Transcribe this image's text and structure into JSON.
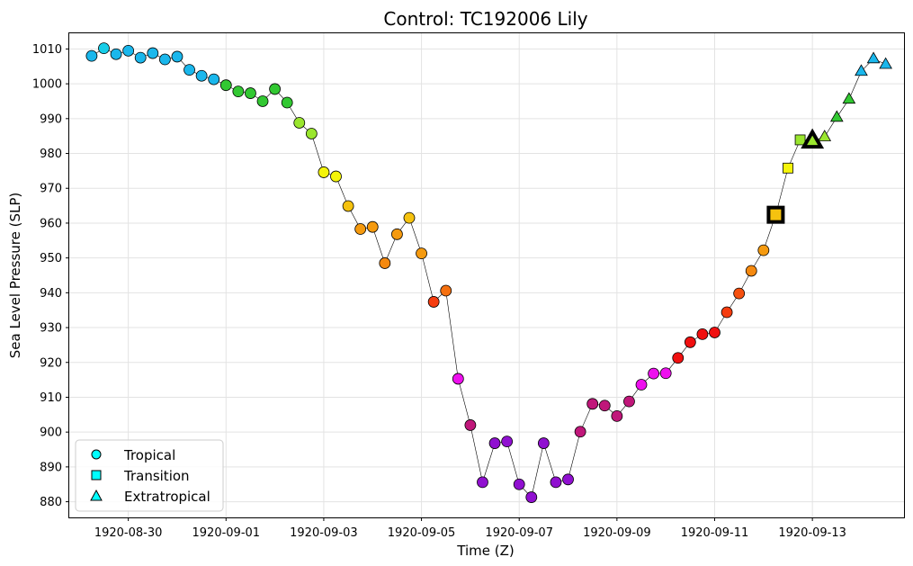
{
  "chart_data": {
    "type": "scatter",
    "title": "Control: TC192006 Lily",
    "xlabel": "Time (Z)",
    "ylabel": "Sea Level Pressure (SLP)",
    "grid": true,
    "legend_placement": "bottom-left",
    "x_axis": {
      "type": "date",
      "range": [
        "1920-08-28T19:00",
        "1920-09-14T21:00"
      ],
      "ticks": [
        "1920-08-30",
        "1920-09-01",
        "1920-09-03",
        "1920-09-05",
        "1920-09-07",
        "1920-09-09",
        "1920-09-11",
        "1920-09-13"
      ]
    },
    "y_axis": {
      "range": [
        875.5,
        1014.5
      ],
      "ticks": [
        880,
        890,
        900,
        910,
        920,
        930,
        940,
        950,
        960,
        970,
        980,
        990,
        1000,
        1010
      ]
    },
    "legend": [
      {
        "label": "Tropical",
        "marker": "circle"
      },
      {
        "label": "Transition",
        "marker": "square"
      },
      {
        "label": "Extratropical",
        "marker": "triangle"
      }
    ],
    "points": [
      {
        "t": "1920-08-29T06:00",
        "slp": 1008.0,
        "phase": "tropical",
        "color": "#1ab7ec"
      },
      {
        "t": "1920-08-29T12:00",
        "slp": 1010.2,
        "phase": "tropical",
        "color": "#17cde8"
      },
      {
        "t": "1920-08-29T18:00",
        "slp": 1008.5,
        "phase": "tropical",
        "color": "#1ab7ec"
      },
      {
        "t": "1920-08-30T00:00",
        "slp": 1009.5,
        "phase": "tropical",
        "color": "#1ab7ec"
      },
      {
        "t": "1920-08-30T06:00",
        "slp": 1007.5,
        "phase": "tropical",
        "color": "#1ab7ec"
      },
      {
        "t": "1920-08-30T12:00",
        "slp": 1008.8,
        "phase": "tropical",
        "color": "#1ab7ec"
      },
      {
        "t": "1920-08-30T18:00",
        "slp": 1007.0,
        "phase": "tropical",
        "color": "#1ab7ec"
      },
      {
        "t": "1920-08-31T00:00",
        "slp": 1007.8,
        "phase": "tropical",
        "color": "#1ab7ec"
      },
      {
        "t": "1920-08-31T06:00",
        "slp": 1004.0,
        "phase": "tropical",
        "color": "#1ab7ec"
      },
      {
        "t": "1920-08-31T12:00",
        "slp": 1002.3,
        "phase": "tropical",
        "color": "#1ab7ec"
      },
      {
        "t": "1920-08-31T18:00",
        "slp": 1001.3,
        "phase": "tropical",
        "color": "#1ab7ec"
      },
      {
        "t": "1920-09-01T00:00",
        "slp": 999.6,
        "phase": "tropical",
        "color": "#32c832"
      },
      {
        "t": "1920-09-01T06:00",
        "slp": 997.8,
        "phase": "tropical",
        "color": "#32c832"
      },
      {
        "t": "1920-09-01T12:00",
        "slp": 997.3,
        "phase": "tropical",
        "color": "#32c832"
      },
      {
        "t": "1920-09-01T18:00",
        "slp": 995.0,
        "phase": "tropical",
        "color": "#32c832"
      },
      {
        "t": "1920-09-02T00:00",
        "slp": 998.5,
        "phase": "tropical",
        "color": "#32c832"
      },
      {
        "t": "1920-09-02T06:00",
        "slp": 994.6,
        "phase": "tropical",
        "color": "#32c832"
      },
      {
        "t": "1920-09-02T12:00",
        "slp": 988.8,
        "phase": "tropical",
        "color": "#9ae62e"
      },
      {
        "t": "1920-09-02T18:00",
        "slp": 985.7,
        "phase": "tropical",
        "color": "#9ae62e"
      },
      {
        "t": "1920-09-03T00:00",
        "slp": 974.6,
        "phase": "tropical",
        "color": "#f5f50a"
      },
      {
        "t": "1920-09-03T06:00",
        "slp": 973.4,
        "phase": "tropical",
        "color": "#f5f50a"
      },
      {
        "t": "1920-09-03T12:00",
        "slp": 964.9,
        "phase": "tropical",
        "color": "#f5c20f"
      },
      {
        "t": "1920-09-03T18:00",
        "slp": 958.3,
        "phase": "tropical",
        "color": "#f59a0f"
      },
      {
        "t": "1920-09-04T00:00",
        "slp": 958.9,
        "phase": "tropical",
        "color": "#f59a0f"
      },
      {
        "t": "1920-09-04T06:00",
        "slp": 948.5,
        "phase": "tropical",
        "color": "#f5890f"
      },
      {
        "t": "1920-09-04T12:00",
        "slp": 956.8,
        "phase": "tropical",
        "color": "#f59a0f"
      },
      {
        "t": "1920-09-04T18:00",
        "slp": 961.5,
        "phase": "tropical",
        "color": "#f5c20f"
      },
      {
        "t": "1920-09-05T00:00",
        "slp": 951.3,
        "phase": "tropical",
        "color": "#f59a0f"
      },
      {
        "t": "1920-09-05T06:00",
        "slp": 937.4,
        "phase": "tropical",
        "color": "#f53c0f"
      },
      {
        "t": "1920-09-05T12:00",
        "slp": 940.6,
        "phase": "tropical",
        "color": "#f5700f"
      },
      {
        "t": "1920-09-05T18:00",
        "slp": 915.3,
        "phase": "tropical",
        "color": "#ee10ee"
      },
      {
        "t": "1920-09-06T00:00",
        "slp": 902.0,
        "phase": "tropical",
        "color": "#c0177a"
      },
      {
        "t": "1920-09-06T06:00",
        "slp": 885.6,
        "phase": "tropical",
        "color": "#9010d0"
      },
      {
        "t": "1920-09-06T12:00",
        "slp": 896.8,
        "phase": "tropical",
        "color": "#9010d0"
      },
      {
        "t": "1920-09-06T18:00",
        "slp": 897.3,
        "phase": "tropical",
        "color": "#9010d0"
      },
      {
        "t": "1920-09-07T00:00",
        "slp": 885.0,
        "phase": "tropical",
        "color": "#9010d0"
      },
      {
        "t": "1920-09-07T06:00",
        "slp": 881.3,
        "phase": "tropical",
        "color": "#9010d0"
      },
      {
        "t": "1920-09-07T12:00",
        "slp": 896.8,
        "phase": "tropical",
        "color": "#9010d0"
      },
      {
        "t": "1920-09-07T18:00",
        "slp": 885.6,
        "phase": "tropical",
        "color": "#9010d0"
      },
      {
        "t": "1920-09-08T00:00",
        "slp": 886.4,
        "phase": "tropical",
        "color": "#9010d0"
      },
      {
        "t": "1920-09-08T06:00",
        "slp": 900.1,
        "phase": "tropical",
        "color": "#c0177a"
      },
      {
        "t": "1920-09-08T12:00",
        "slp": 908.1,
        "phase": "tropical",
        "color": "#c0177a"
      },
      {
        "t": "1920-09-08T18:00",
        "slp": 907.6,
        "phase": "tropical",
        "color": "#c0177a"
      },
      {
        "t": "1920-09-09T00:00",
        "slp": 904.6,
        "phase": "tropical",
        "color": "#c0177a"
      },
      {
        "t": "1920-09-09T06:00",
        "slp": 908.8,
        "phase": "tropical",
        "color": "#c0177a"
      },
      {
        "t": "1920-09-09T12:00",
        "slp": 913.6,
        "phase": "tropical",
        "color": "#ee10ee"
      },
      {
        "t": "1920-09-09T18:00",
        "slp": 916.8,
        "phase": "tropical",
        "color": "#ee10ee"
      },
      {
        "t": "1920-09-10T00:00",
        "slp": 916.9,
        "phase": "tropical",
        "color": "#ee10ee"
      },
      {
        "t": "1920-09-10T06:00",
        "slp": 921.3,
        "phase": "tropical",
        "color": "#f01010"
      },
      {
        "t": "1920-09-10T12:00",
        "slp": 925.8,
        "phase": "tropical",
        "color": "#f01010"
      },
      {
        "t": "1920-09-10T18:00",
        "slp": 928.1,
        "phase": "tropical",
        "color": "#f01010"
      },
      {
        "t": "1920-09-11T00:00",
        "slp": 928.6,
        "phase": "tropical",
        "color": "#f01010"
      },
      {
        "t": "1920-09-11T06:00",
        "slp": 934.4,
        "phase": "tropical",
        "color": "#f53c0f"
      },
      {
        "t": "1920-09-11T12:00",
        "slp": 939.8,
        "phase": "tropical",
        "color": "#f5500f"
      },
      {
        "t": "1920-09-11T18:00",
        "slp": 946.3,
        "phase": "tropical",
        "color": "#f5890f"
      },
      {
        "t": "1920-09-12T00:00",
        "slp": 952.2,
        "phase": "tropical",
        "color": "#f59a0f"
      },
      {
        "t": "1920-09-12T06:00",
        "slp": 962.4,
        "phase": "transition",
        "color": "#f5c20f",
        "highlight": true
      },
      {
        "t": "1920-09-12T12:00",
        "slp": 975.8,
        "phase": "transition",
        "color": "#f5f50a"
      },
      {
        "t": "1920-09-12T18:00",
        "slp": 983.9,
        "phase": "transition",
        "color": "#9ae62e"
      },
      {
        "t": "1920-09-13T00:00",
        "slp": 983.6,
        "phase": "extratropical",
        "color": "#9ae62e",
        "highlight": true
      },
      {
        "t": "1920-09-13T06:00",
        "slp": 984.8,
        "phase": "extratropical",
        "color": "#9ae62e"
      },
      {
        "t": "1920-09-13T12:00",
        "slp": 990.4,
        "phase": "extratropical",
        "color": "#32c832"
      },
      {
        "t": "1920-09-13T18:00",
        "slp": 995.6,
        "phase": "extratropical",
        "color": "#32c832"
      },
      {
        "t": "1920-09-14T00:00",
        "slp": 1003.6,
        "phase": "extratropical",
        "color": "#1ab7ec"
      },
      {
        "t": "1920-09-14T06:00",
        "slp": 1007.2,
        "phase": "extratropical",
        "color": "#1ab7ec"
      },
      {
        "t": "1920-09-14T12:00",
        "slp": 1005.6,
        "phase": "extratropical",
        "color": "#1ab7ec"
      }
    ]
  }
}
